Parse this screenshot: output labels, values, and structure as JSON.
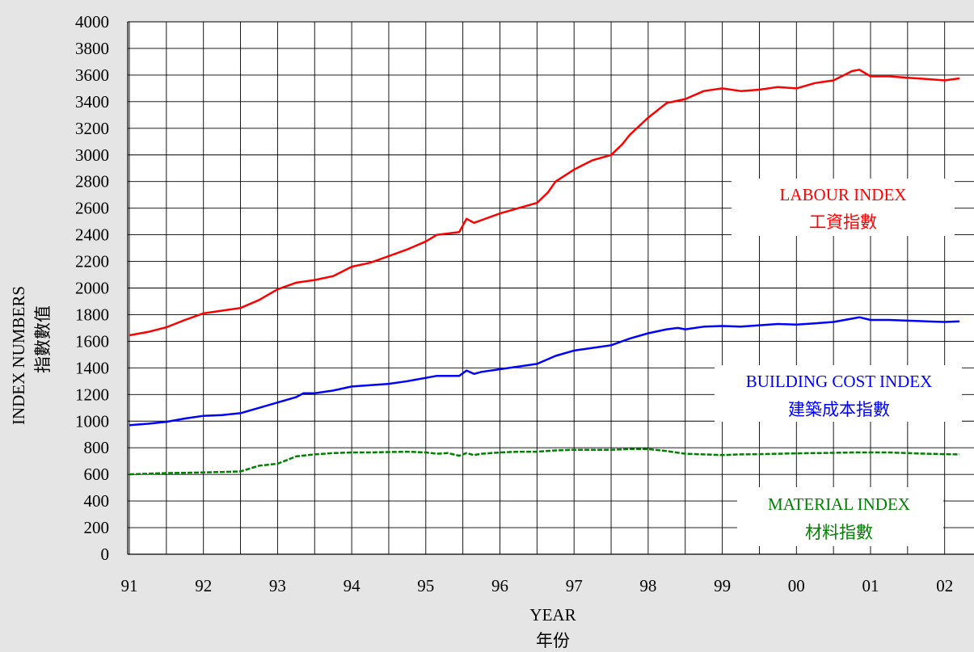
{
  "chart_data": {
    "type": "line",
    "xlabel": "YEAR",
    "xlabel_zh": "年份",
    "ylabel": "INDEX NUMBERS",
    "ylabel_zh": "指數數值",
    "x_ticks": [
      "91",
      "92",
      "93",
      "94",
      "95",
      "96",
      "97",
      "98",
      "99",
      "00",
      "01",
      "02"
    ],
    "y_ticks": [
      "0",
      "200",
      "400",
      "600",
      "800",
      "1000",
      "1200",
      "1400",
      "1600",
      "1800",
      "2000",
      "2200",
      "2400",
      "2600",
      "2800",
      "3000",
      "3200",
      "3400",
      "3600",
      "3800",
      "4000"
    ],
    "xlim": [
      1991.0,
      2002.2
    ],
    "ylim": [
      0,
      4000
    ],
    "grid": true,
    "series": [
      {
        "name": "LABOUR INDEX",
        "name_zh": "工資指數",
        "color": "#ff0000",
        "style": "solid",
        "points": [
          [
            1991.0,
            1645
          ],
          [
            1991.25,
            1670
          ],
          [
            1991.5,
            1705
          ],
          [
            1991.75,
            1760
          ],
          [
            1992.0,
            1810
          ],
          [
            1992.25,
            1830
          ],
          [
            1992.5,
            1850
          ],
          [
            1992.75,
            1910
          ],
          [
            1993.0,
            1990
          ],
          [
            1993.25,
            2040
          ],
          [
            1993.5,
            2060
          ],
          [
            1993.75,
            2090
          ],
          [
            1994.0,
            2160
          ],
          [
            1994.25,
            2190
          ],
          [
            1994.5,
            2240
          ],
          [
            1994.75,
            2290
          ],
          [
            1995.0,
            2350
          ],
          [
            1995.15,
            2400
          ],
          [
            1995.3,
            2410
          ],
          [
            1995.45,
            2420
          ],
          [
            1995.55,
            2520
          ],
          [
            1995.65,
            2490
          ],
          [
            1995.75,
            2510
          ],
          [
            1996.0,
            2560
          ],
          [
            1996.25,
            2600
          ],
          [
            1996.5,
            2640
          ],
          [
            1996.65,
            2720
          ],
          [
            1996.75,
            2800
          ],
          [
            1997.0,
            2890
          ],
          [
            1997.25,
            2960
          ],
          [
            1997.5,
            3000
          ],
          [
            1997.65,
            3080
          ],
          [
            1997.75,
            3150
          ],
          [
            1998.0,
            3280
          ],
          [
            1998.25,
            3390
          ],
          [
            1998.5,
            3420
          ],
          [
            1998.75,
            3480
          ],
          [
            1999.0,
            3500
          ],
          [
            1999.25,
            3480
          ],
          [
            1999.5,
            3490
          ],
          [
            1999.75,
            3510
          ],
          [
            2000.0,
            3500
          ],
          [
            2000.25,
            3540
          ],
          [
            2000.5,
            3560
          ],
          [
            2000.75,
            3630
          ],
          [
            2000.85,
            3640
          ],
          [
            2001.0,
            3590
          ],
          [
            2001.25,
            3590
          ],
          [
            2001.5,
            3580
          ],
          [
            2001.75,
            3570
          ],
          [
            2002.0,
            3560
          ],
          [
            2002.2,
            3575
          ]
        ]
      },
      {
        "name": "BUILDING COST INDEX",
        "name_zh": "建築成本指數",
        "color": "#0000ff",
        "style": "solid",
        "points": [
          [
            1991.0,
            970
          ],
          [
            1991.25,
            980
          ],
          [
            1991.5,
            995
          ],
          [
            1991.75,
            1020
          ],
          [
            1992.0,
            1040
          ],
          [
            1992.25,
            1045
          ],
          [
            1992.5,
            1060
          ],
          [
            1992.75,
            1100
          ],
          [
            1993.0,
            1140
          ],
          [
            1993.25,
            1180
          ],
          [
            1993.35,
            1210
          ],
          [
            1993.5,
            1210
          ],
          [
            1993.75,
            1230
          ],
          [
            1994.0,
            1260
          ],
          [
            1994.25,
            1270
          ],
          [
            1994.5,
            1280
          ],
          [
            1994.75,
            1300
          ],
          [
            1995.0,
            1325
          ],
          [
            1995.15,
            1340
          ],
          [
            1995.3,
            1340
          ],
          [
            1995.45,
            1340
          ],
          [
            1995.55,
            1380
          ],
          [
            1995.65,
            1355
          ],
          [
            1995.75,
            1370
          ],
          [
            1996.0,
            1390
          ],
          [
            1996.25,
            1410
          ],
          [
            1996.5,
            1430
          ],
          [
            1996.75,
            1490
          ],
          [
            1997.0,
            1530
          ],
          [
            1997.25,
            1550
          ],
          [
            1997.5,
            1570
          ],
          [
            1997.75,
            1620
          ],
          [
            1998.0,
            1660
          ],
          [
            1998.25,
            1690
          ],
          [
            1998.4,
            1700
          ],
          [
            1998.5,
            1690
          ],
          [
            1998.75,
            1710
          ],
          [
            1999.0,
            1715
          ],
          [
            1999.25,
            1710
          ],
          [
            1999.5,
            1720
          ],
          [
            1999.75,
            1730
          ],
          [
            2000.0,
            1725
          ],
          [
            2000.25,
            1735
          ],
          [
            2000.5,
            1745
          ],
          [
            2000.75,
            1770
          ],
          [
            2000.85,
            1780
          ],
          [
            2001.0,
            1760
          ],
          [
            2001.25,
            1760
          ],
          [
            2001.5,
            1755
          ],
          [
            2001.75,
            1750
          ],
          [
            2002.0,
            1745
          ],
          [
            2002.2,
            1750
          ]
        ]
      },
      {
        "name": "MATERIAL INDEX",
        "name_zh": "材料指數",
        "color": "#008000",
        "style": "dashed",
        "points": [
          [
            1991.0,
            600
          ],
          [
            1991.25,
            605
          ],
          [
            1991.5,
            610
          ],
          [
            1991.75,
            612
          ],
          [
            1992.0,
            615
          ],
          [
            1992.25,
            618
          ],
          [
            1992.5,
            622
          ],
          [
            1992.75,
            665
          ],
          [
            1993.0,
            680
          ],
          [
            1993.25,
            735
          ],
          [
            1993.5,
            750
          ],
          [
            1993.75,
            760
          ],
          [
            1994.0,
            765
          ],
          [
            1994.25,
            765
          ],
          [
            1994.5,
            768
          ],
          [
            1994.75,
            770
          ],
          [
            1995.0,
            765
          ],
          [
            1995.15,
            755
          ],
          [
            1995.3,
            760
          ],
          [
            1995.45,
            740
          ],
          [
            1995.55,
            760
          ],
          [
            1995.65,
            745
          ],
          [
            1995.75,
            755
          ],
          [
            1996.0,
            765
          ],
          [
            1996.25,
            770
          ],
          [
            1996.5,
            770
          ],
          [
            1996.75,
            780
          ],
          [
            1997.0,
            785
          ],
          [
            1997.25,
            785
          ],
          [
            1997.5,
            785
          ],
          [
            1997.75,
            790
          ],
          [
            1998.0,
            790
          ],
          [
            1998.25,
            775
          ],
          [
            1998.5,
            755
          ],
          [
            1998.75,
            750
          ],
          [
            1999.0,
            745
          ],
          [
            1999.25,
            750
          ],
          [
            1999.5,
            752
          ],
          [
            1999.75,
            755
          ],
          [
            2000.0,
            758
          ],
          [
            2000.25,
            760
          ],
          [
            2000.5,
            762
          ],
          [
            2000.75,
            765
          ],
          [
            2001.0,
            765
          ],
          [
            2001.25,
            765
          ],
          [
            2001.5,
            760
          ],
          [
            2001.75,
            755
          ],
          [
            2002.0,
            752
          ],
          [
            2002.2,
            750
          ]
        ]
      }
    ]
  }
}
